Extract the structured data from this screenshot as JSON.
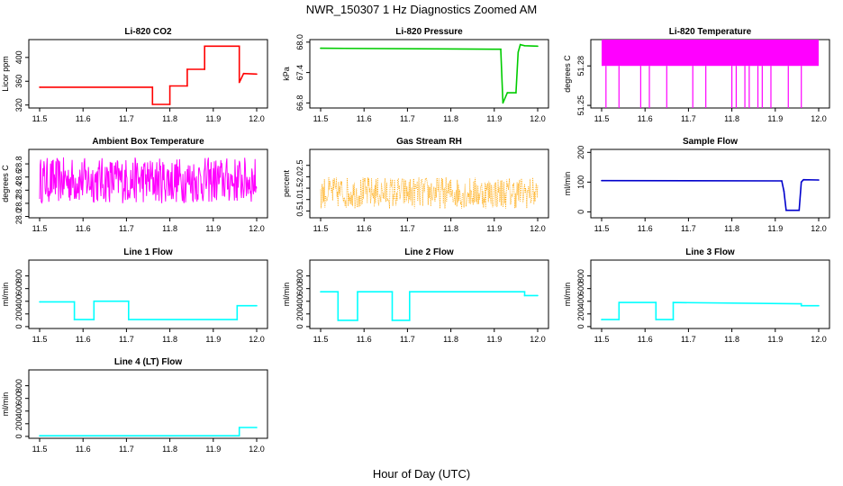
{
  "page": {
    "title": "NWR_150307  1 Hz Diagnostics Zoomed AM",
    "xlabel": "Hour of Day (UTC)"
  },
  "chart_data": [
    {
      "type": "line",
      "title": "Li-820 CO2",
      "ylabel": "Licor ppm",
      "color": "#ff0000",
      "xlim": [
        11.5,
        12.0
      ],
      "ylim": [
        315,
        430
      ],
      "yticks": [
        "320",
        "360",
        "400"
      ],
      "x": [
        11.5,
        11.76,
        11.76,
        11.8,
        11.8,
        11.84,
        11.84,
        11.88,
        11.88,
        11.96,
        11.96,
        11.97,
        12.0
      ],
      "values": [
        350,
        350,
        321,
        321,
        352,
        352,
        380,
        380,
        419,
        419,
        358,
        373,
        372
      ]
    },
    {
      "type": "line",
      "title": "Li-820 Pressure",
      "ylabel": "kPa",
      "color": "#00cc00",
      "xlim": [
        11.5,
        12.0
      ],
      "ylim": [
        66.7,
        68.05
      ],
      "yticks": [
        "66.8",
        "67.4",
        "68.0"
      ],
      "x": [
        11.5,
        11.9,
        11.915,
        11.92,
        11.93,
        11.95,
        11.955,
        11.96,
        11.97,
        12.0
      ],
      "values": [
        67.88,
        67.86,
        67.86,
        66.8,
        67.0,
        67.0,
        67.8,
        67.95,
        67.93,
        67.92
      ]
    },
    {
      "type": "line",
      "title": "Li-820 Temperature",
      "ylabel": "degrees C",
      "color": "#ff00ff",
      "xlim": [
        11.5,
        12.0
      ],
      "ylim": [
        51.248,
        51.3
      ],
      "yticks": [
        "51.25",
        "51.28"
      ],
      "base": 51.28,
      "top": 51.3,
      "spikes": [
        11.51,
        11.54,
        11.59,
        11.61,
        11.65,
        11.71,
        11.74,
        11.8,
        11.81,
        11.83,
        11.84,
        11.86,
        11.87,
        11.89,
        11.93,
        11.96
      ]
    },
    {
      "type": "line",
      "title": "Ambient Box Temperature",
      "ylabel": "degrees C",
      "color": "#ff00ff",
      "xlim": [
        11.5,
        12.0
      ],
      "ylim": [
        27.98,
        29.02
      ],
      "yticks": [
        "28.0",
        "28.2",
        "28.4",
        "28.6",
        "28.8"
      ],
      "noise": {
        "mean": 28.55,
        "amplitude": 0.35
      }
    },
    {
      "type": "scatter",
      "title": "Gas Stream RH",
      "ylabel": "percent",
      "color": "#ffa500",
      "xlim": [
        11.5,
        12.0
      ],
      "ylim": [
        0.2,
        3.2
      ],
      "yticks": [
        "0.5",
        "1.0",
        "1.5",
        "2.0",
        "2.5"
      ],
      "noise": {
        "mean": 1.3,
        "amplitude": 0.7
      }
    },
    {
      "type": "line",
      "title": "Sample Flow",
      "ylabel": "ml/min",
      "color": "#0000cc",
      "xlim": [
        11.5,
        12.0
      ],
      "ylim": [
        -20,
        210
      ],
      "yticks": [
        "0",
        "100",
        "200"
      ],
      "x": [
        11.5,
        11.915,
        11.92,
        11.925,
        11.955,
        11.96,
        11.965,
        12.0
      ],
      "values": [
        105,
        104,
        70,
        5,
        5,
        100,
        108,
        107
      ]
    },
    {
      "type": "line",
      "title": "Line 1 Flow",
      "ylabel": "ml/min",
      "color": "#00ffff",
      "xlim": [
        11.5,
        12.0
      ],
      "ylim": [
        -30,
        1050
      ],
      "yticks": [
        "0",
        "200",
        "400",
        "600",
        "800"
      ],
      "x": [
        11.5,
        11.58,
        11.58,
        11.625,
        11.625,
        11.705,
        11.705,
        11.955,
        11.955,
        12.0
      ],
      "values": [
        390,
        390,
        110,
        110,
        400,
        400,
        110,
        110,
        330,
        330
      ]
    },
    {
      "type": "line",
      "title": "Line 2 Flow",
      "ylabel": "ml/min",
      "color": "#00ffff",
      "xlim": [
        11.5,
        12.0
      ],
      "ylim": [
        -30,
        1050
      ],
      "yticks": [
        "0",
        "200",
        "400",
        "600",
        "800"
      ],
      "x": [
        11.5,
        11.54,
        11.54,
        11.585,
        11.585,
        11.665,
        11.665,
        11.705,
        11.705,
        11.97,
        11.97,
        12.0
      ],
      "values": [
        550,
        550,
        100,
        100,
        550,
        550,
        100,
        100,
        550,
        550,
        490,
        490
      ]
    },
    {
      "type": "line",
      "title": "Line 3 Flow",
      "ylabel": "ml/min",
      "color": "#00ffff",
      "xlim": [
        11.5,
        12.0
      ],
      "ylim": [
        -30,
        1050
      ],
      "yticks": [
        "0",
        "200",
        "400",
        "600",
        "800"
      ],
      "x": [
        11.5,
        11.54,
        11.54,
        11.625,
        11.625,
        11.665,
        11.665,
        11.96,
        11.96,
        12.0
      ],
      "values": [
        110,
        110,
        380,
        380,
        110,
        110,
        380,
        360,
        330,
        330
      ]
    },
    {
      "type": "line",
      "title": "Line 4 (LT) Flow",
      "ylabel": "ml/min",
      "color": "#00ffff",
      "xlim": [
        11.5,
        12.0
      ],
      "ylim": [
        -30,
        1050
      ],
      "yticks": [
        "0",
        "200",
        "400",
        "600",
        "800"
      ],
      "x": [
        11.5,
        11.96,
        11.96,
        12.0
      ],
      "values": [
        10,
        10,
        140,
        140
      ]
    }
  ],
  "x_ticks": [
    "11.5",
    "11.6",
    "11.7",
    "11.8",
    "11.9",
    "12.0"
  ]
}
